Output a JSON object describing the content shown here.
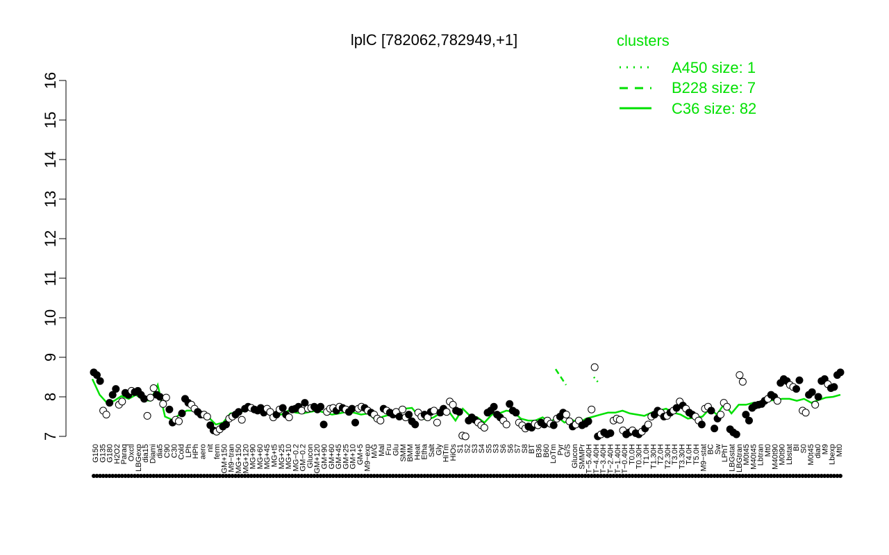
{
  "chart_data": {
    "type": "line",
    "title": "lplC [782062,782949,+1]",
    "xlabel": "",
    "ylabel": "",
    "ylim": [
      7,
      16
    ],
    "y_ticks": [
      "7",
      "8",
      "9",
      "10",
      "11",
      "12",
      "13",
      "14",
      "15",
      "16"
    ],
    "x_ticks": [
      "G150",
      "G135",
      "G180",
      "H2O2",
      "Paraq",
      "Oxctl",
      "LBGexp",
      "dia15",
      "Diami",
      "dia5",
      "C90",
      "C30",
      "Cold",
      "LPh",
      "HPh",
      "aero",
      "nit",
      "ferm",
      "GM+150",
      "M9−tran",
      "MG+150",
      "MG+120",
      "MG+90",
      "MG+60",
      "MG+45",
      "MG+t5",
      "MG+25",
      "MG+10",
      "MG−0.2",
      "GM−0.2",
      "Glucon",
      "GM+120",
      "GM+90",
      "GM+60",
      "GM+45",
      "GM+25",
      "GM+10",
      "GM+5",
      "M9−exp",
      "M/G",
      "Mal",
      "Fru",
      "Glu",
      "SMM",
      "BMM",
      "Heat",
      "Etha",
      "Salt",
      "Gly",
      "HiTm",
      "HiOs",
      "S1",
      "S2",
      "S3",
      "S4",
      "S5",
      "S3",
      "S6",
      "S6",
      "S7",
      "S8",
      "BT",
      "B36",
      "B60",
      "LoTm",
      "Pyr",
      "G/S",
      "Glucon",
      "SMMPr",
      "T−5.40H",
      "T−4.40H",
      "T−3.40H",
      "T−2.40H",
      "T−1.40H",
      "T−0.40H",
      "T0.0H",
      "T0.30H",
      "T1.0H",
      "T1.30H",
      "T2.0H",
      "T2.30H",
      "T3.0H",
      "T3.30H",
      "T4.0H",
      "T5.0H",
      "M9−stat",
      "BC",
      "Sw",
      "LPhT",
      "LBGstat",
      "LBGtran",
      "M0t45",
      "M40t45",
      "Lbtran",
      "Mt0",
      "M40t90",
      "M0t90",
      "Lbstat",
      "BI",
      "S0",
      "M0t45",
      "dia0",
      "M9",
      "Lbexp",
      "Mt0"
    ],
    "series": [
      {
        "name": "A450 size: 1",
        "style": "dotted",
        "values": [
          8.5,
          8.35
        ]
      },
      {
        "name": "B228 size: 7",
        "style": "dashed",
        "values": [
          8.7,
          8.3
        ]
      },
      {
        "name": "C36 size: 82",
        "style": "solid",
        "values": [
          8.45,
          8.05,
          7.85,
          7.9,
          8.02,
          7.95,
          8.05,
          7.92,
          7.9,
          8.3,
          7.5,
          7.42,
          7.55,
          7.65,
          7.65,
          7.55,
          7.48,
          7.3,
          7.35,
          7.58,
          7.6,
          7.65,
          7.7,
          7.6,
          7.62,
          7.58,
          7.55,
          7.65,
          7.6,
          7.58,
          7.62,
          7.65,
          7.6,
          7.55,
          7.58,
          7.62,
          7.6,
          7.55,
          7.58,
          7.42,
          7.5,
          7.55,
          7.65,
          7.7,
          7.72,
          7.5,
          7.42,
          7.48,
          7.6,
          7.65,
          7.4,
          7.7,
          7.52,
          7.48,
          7.35,
          7.55,
          7.58,
          7.65,
          7.62,
          7.45,
          7.4,
          7.4,
          7.48,
          7.35,
          7.5,
          7.35,
          7.42,
          7.35,
          7.45,
          7.5,
          7.55,
          7.6,
          7.6,
          7.65,
          7.58,
          7.55,
          7.52,
          7.6,
          7.65,
          7.7,
          7.6,
          7.55,
          7.45,
          7.48,
          7.5,
          7.7,
          7.55,
          7.82,
          7.58,
          7.8,
          7.8,
          7.85,
          7.85,
          7.9,
          7.92,
          7.95,
          7.95,
          7.9,
          7.95,
          7.85,
          7.92,
          7.98,
          8.0,
          8.05
        ]
      }
    ],
    "points": [
      {
        "y": 8.62,
        "f": "#000"
      },
      {
        "y": 8.55,
        "f": "#000"
      },
      {
        "y": 8.4,
        "f": "#000"
      },
      {
        "y": 7.65,
        "f": "#fff"
      },
      {
        "y": 7.55,
        "f": "#fff"
      },
      {
        "y": 7.85,
        "f": "#000"
      },
      {
        "y": 8.05,
        "f": "#000"
      },
      {
        "y": 8.2,
        "f": "#000"
      },
      {
        "y": 7.8,
        "f": "#fff"
      },
      {
        "y": 7.88,
        "f": "#fff"
      },
      {
        "y": 8.1,
        "f": "#000"
      },
      {
        "y": 8.05,
        "f": "#000"
      },
      {
        "y": 8.15,
        "f": "#fff"
      },
      {
        "y": 8.12,
        "f": "#000"
      },
      {
        "y": 8.15,
        "f": "#000"
      },
      {
        "y": 8.05,
        "f": "#000"
      },
      {
        "y": 7.95,
        "f": "#000"
      },
      {
        "y": 7.52,
        "f": "#fff"
      },
      {
        "y": 7.98,
        "f": "#fff"
      },
      {
        "y": 8.22,
        "f": "#fff"
      },
      {
        "y": 8.05,
        "f": "#000"
      },
      {
        "y": 8.0,
        "f": "#000"
      },
      {
        "y": 7.82,
        "f": "#fff"
      },
      {
        "y": 7.98,
        "f": "#fff"
      },
      {
        "y": 7.68,
        "f": "#000"
      },
      {
        "y": 7.35,
        "f": "#000"
      },
      {
        "y": 7.42,
        "f": "#fff"
      },
      {
        "y": 7.38,
        "f": "#fff"
      },
      {
        "y": 7.58,
        "f": "#000"
      },
      {
        "y": 7.95,
        "f": "#000"
      },
      {
        "y": 7.85,
        "f": "#000"
      },
      {
        "y": 7.8,
        "f": "#fff"
      },
      {
        "y": 7.7,
        "f": "#fff"
      },
      {
        "y": 7.62,
        "f": "#000"
      },
      {
        "y": 7.55,
        "f": "#000"
      },
      {
        "y": 7.55,
        "f": "#fff"
      },
      {
        "y": 7.5,
        "f": "#fff"
      },
      {
        "y": 7.28,
        "f": "#000"
      },
      {
        "y": 7.15,
        "f": "#000"
      },
      {
        "y": 7.12,
        "f": "#fff"
      },
      {
        "y": 7.18,
        "f": "#fff"
      },
      {
        "y": 7.25,
        "f": "#000"
      },
      {
        "y": 7.3,
        "f": "#000"
      },
      {
        "y": 7.45,
        "f": "#fff"
      },
      {
        "y": 7.5,
        "f": "#fff"
      },
      {
        "y": 7.55,
        "f": "#000"
      },
      {
        "y": 7.62,
        "f": "#000"
      },
      {
        "y": 7.42,
        "f": "#fff"
      },
      {
        "y": 7.7,
        "f": "#000"
      },
      {
        "y": 7.75,
        "f": "#000"
      },
      {
        "y": 7.72,
        "f": "#fff"
      },
      {
        "y": 7.68,
        "f": "#000"
      },
      {
        "y": 7.65,
        "f": "#000"
      },
      {
        "y": 7.72,
        "f": "#000"
      },
      {
        "y": 7.6,
        "f": "#000"
      },
      {
        "y": 7.7,
        "f": "#fff"
      },
      {
        "y": 7.62,
        "f": "#fff"
      },
      {
        "y": 7.48,
        "f": "#fff"
      },
      {
        "y": 7.55,
        "f": "#000"
      },
      {
        "y": 7.68,
        "f": "#fff"
      },
      {
        "y": 7.72,
        "f": "#000"
      },
      {
        "y": 7.55,
        "f": "#000"
      },
      {
        "y": 7.48,
        "f": "#fff"
      },
      {
        "y": 7.68,
        "f": "#000"
      },
      {
        "y": 7.7,
        "f": "#000"
      },
      {
        "y": 7.75,
        "f": "#000"
      },
      {
        "y": 7.65,
        "f": "#fff"
      },
      {
        "y": 7.85,
        "f": "#000"
      },
      {
        "y": 7.7,
        "f": "#fff"
      },
      {
        "y": 7.72,
        "f": "#fff"
      },
      {
        "y": 7.75,
        "f": "#000"
      },
      {
        "y": 7.68,
        "f": "#000"
      },
      {
        "y": 7.75,
        "f": "#000"
      },
      {
        "y": 7.3,
        "f": "#000"
      },
      {
        "y": 7.62,
        "f": "#fff"
      },
      {
        "y": 7.7,
        "f": "#fff"
      },
      {
        "y": 7.72,
        "f": "#fff"
      },
      {
        "y": 7.65,
        "f": "#000"
      },
      {
        "y": 7.75,
        "f": "#fff"
      },
      {
        "y": 7.72,
        "f": "#000"
      },
      {
        "y": 7.68,
        "f": "#fff"
      },
      {
        "y": 7.62,
        "f": "#000"
      },
      {
        "y": 7.7,
        "f": "#000"
      },
      {
        "y": 7.35,
        "f": "#000"
      },
      {
        "y": 7.7,
        "f": "#fff"
      },
      {
        "y": 7.75,
        "f": "#fff"
      },
      {
        "y": 7.72,
        "f": "#000"
      },
      {
        "y": 7.65,
        "f": "#fff"
      },
      {
        "y": 7.6,
        "f": "#000"
      },
      {
        "y": 7.55,
        "f": "#fff"
      },
      {
        "y": 7.45,
        "f": "#fff"
      },
      {
        "y": 7.4,
        "f": "#fff"
      },
      {
        "y": 7.7,
        "f": "#000"
      },
      {
        "y": 7.65,
        "f": "#fff"
      },
      {
        "y": 7.6,
        "f": "#000"
      },
      {
        "y": 7.55,
        "f": "#000"
      },
      {
        "y": 7.62,
        "f": "#fff"
      },
      {
        "y": 7.5,
        "f": "#000"
      },
      {
        "y": 7.68,
        "f": "#fff"
      },
      {
        "y": 7.48,
        "f": "#fff"
      },
      {
        "y": 7.55,
        "f": "#000"
      },
      {
        "y": 7.38,
        "f": "#000"
      },
      {
        "y": 7.3,
        "f": "#000"
      },
      {
        "y": 7.6,
        "f": "#fff"
      },
      {
        "y": 7.5,
        "f": "#fff"
      },
      {
        "y": 7.55,
        "f": "#000"
      },
      {
        "y": 7.48,
        "f": "#fff"
      },
      {
        "y": 7.62,
        "f": "#000"
      },
      {
        "y": 7.65,
        "f": "#fff"
      },
      {
        "y": 7.35,
        "f": "#fff"
      },
      {
        "y": 7.6,
        "f": "#000"
      },
      {
        "y": 7.7,
        "f": "#000"
      },
      {
        "y": 7.62,
        "f": "#fff"
      },
      {
        "y": 7.88,
        "f": "#fff"
      },
      {
        "y": 7.8,
        "f": "#fff"
      },
      {
        "y": 7.65,
        "f": "#000"
      },
      {
        "y": 7.62,
        "f": "#000"
      },
      {
        "y": 7.02,
        "f": "#fff"
      },
      {
        "y": 7.0,
        "f": "#fff"
      },
      {
        "y": 7.4,
        "f": "#000"
      },
      {
        "y": 7.48,
        "f": "#000"
      },
      {
        "y": 7.42,
        "f": "#000"
      },
      {
        "y": 7.35,
        "f": "#fff"
      },
      {
        "y": 7.28,
        "f": "#fff"
      },
      {
        "y": 7.22,
        "f": "#fff"
      },
      {
        "y": 7.6,
        "f": "#000"
      },
      {
        "y": 7.65,
        "f": "#000"
      },
      {
        "y": 7.75,
        "f": "#000"
      },
      {
        "y": 7.55,
        "f": "#000"
      },
      {
        "y": 7.48,
        "f": "#000"
      },
      {
        "y": 7.4,
        "f": "#fff"
      },
      {
        "y": 7.3,
        "f": "#fff"
      },
      {
        "y": 7.82,
        "f": "#000"
      },
      {
        "y": 7.65,
        "f": "#000"
      },
      {
        "y": 7.6,
        "f": "#000"
      },
      {
        "y": 7.35,
        "f": "#fff"
      },
      {
        "y": 7.28,
        "f": "#fff"
      },
      {
        "y": 7.2,
        "f": "#fff"
      },
      {
        "y": 7.25,
        "f": "#000"
      },
      {
        "y": 7.22,
        "f": "#000"
      },
      {
        "y": 7.32,
        "f": "#fff"
      },
      {
        "y": 7.28,
        "f": "#fff"
      },
      {
        "y": 7.35,
        "f": "#000"
      },
      {
        "y": 7.3,
        "f": "#000"
      },
      {
        "y": 7.4,
        "f": "#fff"
      },
      {
        "y": 7.32,
        "f": "#fff"
      },
      {
        "y": 7.28,
        "f": "#000"
      },
      {
        "y": 7.45,
        "f": "#fff"
      },
      {
        "y": 7.5,
        "f": "#000"
      },
      {
        "y": 7.6,
        "f": "#000"
      },
      {
        "y": 7.55,
        "f": "#fff"
      },
      {
        "y": 7.38,
        "f": "#fff"
      },
      {
        "y": 7.25,
        "f": "#000"
      },
      {
        "y": 7.3,
        "f": "#fff"
      },
      {
        "y": 7.4,
        "f": "#fff"
      },
      {
        "y": 7.28,
        "f": "#000"
      },
      {
        "y": 7.32,
        "f": "#000"
      },
      {
        "y": 7.38,
        "f": "#000"
      },
      {
        "y": 7.68,
        "f": "#fff"
      },
      {
        "y": 8.75,
        "f": "#fff"
      },
      {
        "y": 7.0,
        "f": "#000"
      },
      {
        "y": 7.05,
        "f": "#fff"
      },
      {
        "y": 7.1,
        "f": "#000"
      },
      {
        "y": 7.05,
        "f": "#000"
      },
      {
        "y": 7.08,
        "f": "#000"
      },
      {
        "y": 7.4,
        "f": "#fff"
      },
      {
        "y": 7.45,
        "f": "#fff"
      },
      {
        "y": 7.42,
        "f": "#fff"
      },
      {
        "y": 7.15,
        "f": "#fff"
      },
      {
        "y": 7.05,
        "f": "#000"
      },
      {
        "y": 7.1,
        "f": "#000"
      },
      {
        "y": 7.15,
        "f": "#fff"
      },
      {
        "y": 7.08,
        "f": "#000"
      },
      {
        "y": 7.05,
        "f": "#000"
      },
      {
        "y": 7.12,
        "f": "#fff"
      },
      {
        "y": 7.2,
        "f": "#000"
      },
      {
        "y": 7.3,
        "f": "#fff"
      },
      {
        "y": 7.5,
        "f": "#fff"
      },
      {
        "y": 7.55,
        "f": "#000"
      },
      {
        "y": 7.65,
        "f": "#000"
      },
      {
        "y": 7.6,
        "f": "#fff"
      },
      {
        "y": 7.5,
        "f": "#000"
      },
      {
        "y": 7.52,
        "f": "#fff"
      },
      {
        "y": 7.6,
        "f": "#000"
      },
      {
        "y": 7.65,
        "f": "#fff"
      },
      {
        "y": 7.72,
        "f": "#000"
      },
      {
        "y": 7.88,
        "f": "#fff"
      },
      {
        "y": 7.78,
        "f": "#000"
      },
      {
        "y": 7.7,
        "f": "#fff"
      },
      {
        "y": 7.6,
        "f": "#000"
      },
      {
        "y": 7.55,
        "f": "#000"
      },
      {
        "y": 7.5,
        "f": "#fff"
      },
      {
        "y": 7.4,
        "f": "#fff"
      },
      {
        "y": 7.3,
        "f": "#000"
      },
      {
        "y": 7.7,
        "f": "#fff"
      },
      {
        "y": 7.75,
        "f": "#fff"
      },
      {
        "y": 7.65,
        "f": "#000"
      },
      {
        "y": 7.2,
        "f": "#000"
      },
      {
        "y": 7.45,
        "f": "#000"
      },
      {
        "y": 7.55,
        "f": "#fff"
      },
      {
        "y": 7.85,
        "f": "#fff"
      },
      {
        "y": 7.75,
        "f": "#fff"
      },
      {
        "y": 7.18,
        "f": "#000"
      },
      {
        "y": 7.1,
        "f": "#000"
      },
      {
        "y": 7.05,
        "f": "#000"
      },
      {
        "y": 8.55,
        "f": "#fff"
      },
      {
        "y": 8.38,
        "f": "#fff"
      },
      {
        "y": 7.55,
        "f": "#000"
      },
      {
        "y": 7.4,
        "f": "#000"
      },
      {
        "y": 7.72,
        "f": "#000"
      },
      {
        "y": 7.78,
        "f": "#000"
      },
      {
        "y": 7.8,
        "f": "#000"
      },
      {
        "y": 7.82,
        "f": "#000"
      },
      {
        "y": 7.9,
        "f": "#000"
      },
      {
        "y": 7.95,
        "f": "#fff"
      },
      {
        "y": 8.05,
        "f": "#000"
      },
      {
        "y": 8.0,
        "f": "#000"
      },
      {
        "y": 7.9,
        "f": "#fff"
      },
      {
        "y": 8.35,
        "f": "#000"
      },
      {
        "y": 8.45,
        "f": "#000"
      },
      {
        "y": 8.4,
        "f": "#000"
      },
      {
        "y": 8.3,
        "f": "#fff"
      },
      {
        "y": 8.25,
        "f": "#fff"
      },
      {
        "y": 8.2,
        "f": "#000"
      },
      {
        "y": 8.42,
        "f": "#000"
      },
      {
        "y": 7.65,
        "f": "#fff"
      },
      {
        "y": 7.6,
        "f": "#fff"
      },
      {
        "y": 8.05,
        "f": "#000"
      },
      {
        "y": 8.12,
        "f": "#000"
      },
      {
        "y": 7.8,
        "f": "#fff"
      },
      {
        "y": 8.0,
        "f": "#000"
      },
      {
        "y": 8.4,
        "f": "#000"
      },
      {
        "y": 8.45,
        "f": "#000"
      },
      {
        "y": 8.32,
        "f": "#fff"
      },
      {
        "y": 8.22,
        "f": "#000"
      },
      {
        "y": 8.25,
        "f": "#000"
      },
      {
        "y": 8.55,
        "f": "#000"
      },
      {
        "y": 8.62,
        "f": "#000"
      }
    ],
    "legend": {
      "title": "clusters",
      "position": "top-right",
      "entries": [
        "A450 size: 1",
        "B228 size: 7",
        "C36 size: 82"
      ]
    },
    "colors": {
      "series": "#00e000",
      "axis": "#000000",
      "legend_text": "#00e000"
    },
    "grid": false
  }
}
